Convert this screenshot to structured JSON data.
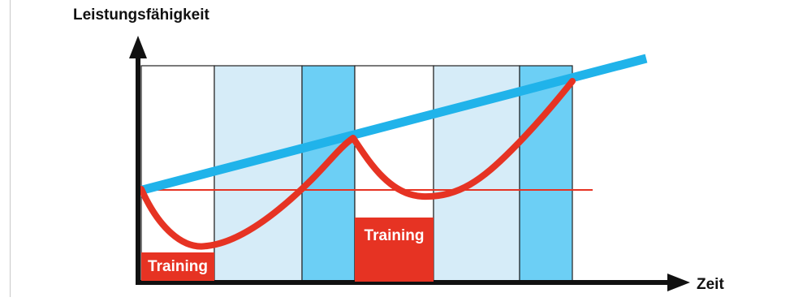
{
  "diagram": {
    "y_axis_label": "Leistungsfähigkeit",
    "x_axis_label": "Zeit",
    "training_labels": [
      "Training",
      "Training"
    ],
    "colors": {
      "trend_line": "#20b3ea",
      "performance_curve": "#e63323",
      "baseline": "#e63323",
      "training_box": "#e63323",
      "light_band": "#d6ecf8",
      "dark_band": "#6ccff5",
      "axis": "#111111"
    }
  }
}
